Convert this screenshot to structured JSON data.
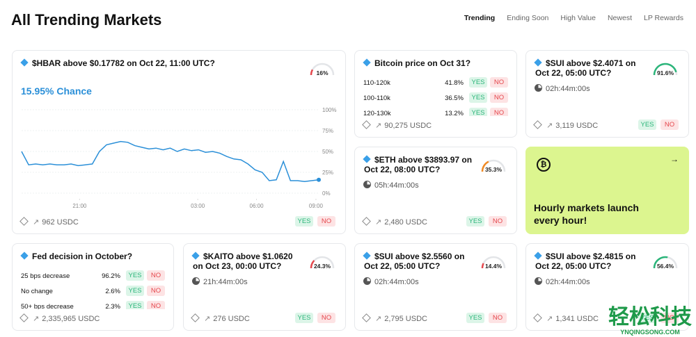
{
  "header": {
    "title": "All Trending Markets",
    "tabs": [
      "Trending",
      "Ending Soon",
      "High Value",
      "Newest",
      "LP Rewards"
    ],
    "active_tab": 0
  },
  "buttons": {
    "yes": "YES",
    "no": "NO"
  },
  "cards": [
    {
      "kind": "chart",
      "title": "$HBAR above $0.17782 on Oct 22, 11:00 UTC?",
      "gauge": {
        "value": 16,
        "label": "16%",
        "color": "#e5484d"
      },
      "chance": "15.95% Chance",
      "volume": "962 USDC",
      "chart": {
        "type": "line",
        "color": "#2a8fd8",
        "grid": true,
        "values": [
          50,
          34,
          35,
          34,
          35,
          34,
          34,
          35,
          33,
          34,
          35,
          50,
          58,
          60,
          62,
          61,
          57,
          55,
          53,
          54,
          52,
          54,
          50,
          53,
          51,
          52,
          49,
          50,
          48,
          44,
          41,
          40,
          35,
          28,
          25,
          15,
          16,
          38,
          15,
          15,
          14,
          15,
          16
        ],
        "xlim": [
          0,
          42
        ],
        "xticks": [
          {
            "value": 8.2,
            "label": "21:00"
          },
          {
            "value": 24.9,
            "label": "03:00"
          },
          {
            "value": 33.2,
            "label": "06:00"
          },
          {
            "value": 41.6,
            "label": "09:00"
          }
        ],
        "ylim": [
          0,
          100
        ],
        "yticks": [
          {
            "value": 0,
            "label": "0%"
          },
          {
            "value": 25,
            "label": "25%"
          },
          {
            "value": 50,
            "label": "50%"
          },
          {
            "value": 75,
            "label": "75%"
          },
          {
            "value": 100,
            "label": "100%"
          }
        ]
      }
    },
    {
      "kind": "multi",
      "title": "Bitcoin price on Oct 31?",
      "rows": [
        {
          "label": "110-120k",
          "pct": "41.8%"
        },
        {
          "label": "100-110k",
          "pct": "36.5%"
        },
        {
          "label": "120-130k",
          "pct": "13.2%"
        }
      ],
      "volume": "90,275 USDC"
    },
    {
      "kind": "binary",
      "title": "$SUI above $2.4071 on Oct 22, 05:00 UTC?",
      "gauge": {
        "value": 91.6,
        "label": "91.6%",
        "color": "#2bb57a"
      },
      "time": "02h:44m:00s",
      "volume": "3,119 USDC"
    },
    {
      "kind": "binary",
      "title": "$ETH above $3893.97 on Oct 22, 08:00 UTC?",
      "gauge": {
        "value": 35.3,
        "label": "35.3%",
        "color": "#f08a24"
      },
      "time": "05h:44m:00s",
      "volume": "2,480 USDC"
    },
    {
      "kind": "promo",
      "title": "Hourly markets launch every hour!"
    },
    {
      "kind": "multi",
      "title": "Fed decision in October?",
      "rows": [
        {
          "label": "25 bps decrease",
          "pct": "96.2%"
        },
        {
          "label": "No change",
          "pct": "2.6%"
        },
        {
          "label": "50+ bps decrease",
          "pct": "2.3%"
        }
      ],
      "volume": "2,335,965 USDC"
    },
    {
      "kind": "binary",
      "title": "$KAITO above $1.0620 on Oct 23, 00:00 UTC?",
      "gauge": {
        "value": 24.3,
        "label": "24.3%",
        "color": "#e5484d"
      },
      "time": "21h:44m:00s",
      "volume": "276 USDC"
    },
    {
      "kind": "binary",
      "title": "$SUI above $2.5560 on Oct 22, 05:00 UTC?",
      "gauge": {
        "value": 14.4,
        "label": "14.4%",
        "color": "#e5484d"
      },
      "time": "02h:44m:00s",
      "volume": "2,795 USDC"
    },
    {
      "kind": "binary",
      "title": "$SUI above $2.4815 on Oct 22, 05:00 UTC?",
      "gauge": {
        "value": 56.4,
        "label": "56.4%",
        "color": "#2bb57a"
      },
      "time": "02h:44m:00s",
      "volume": "1,341 USDC"
    }
  ],
  "watermark": {
    "name": "轻松科技",
    "url": "YNQINGSONG.COM"
  }
}
